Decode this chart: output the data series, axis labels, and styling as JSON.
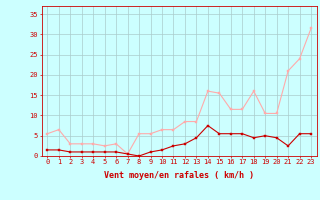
{
  "hours": [
    0,
    1,
    2,
    3,
    4,
    5,
    6,
    7,
    8,
    9,
    10,
    11,
    12,
    13,
    14,
    15,
    16,
    17,
    18,
    19,
    20,
    21,
    22,
    23
  ],
  "rafales": [
    5.5,
    6.5,
    3.0,
    3.0,
    3.0,
    2.5,
    3.0,
    0.5,
    5.5,
    5.5,
    6.5,
    6.5,
    8.5,
    8.5,
    16.0,
    15.5,
    11.5,
    11.5,
    16.0,
    10.5,
    10.5,
    21.0,
    24.0,
    31.5
  ],
  "moyen": [
    1.5,
    1.5,
    1.0,
    1.0,
    1.0,
    1.0,
    1.0,
    0.5,
    0.0,
    1.0,
    1.5,
    2.5,
    3.0,
    4.5,
    7.5,
    5.5,
    5.5,
    5.5,
    4.5,
    5.0,
    4.5,
    2.5,
    5.5,
    5.5
  ],
  "rafales_color": "#ffaaaa",
  "moyen_color": "#cc0000",
  "bg_color": "#ccffff",
  "grid_color": "#aacccc",
  "axis_color": "#cc0000",
  "xlabel": "Vent moyen/en rafales ( km/h )",
  "ylim": [
    0,
    37
  ],
  "yticks": [
    0,
    5,
    10,
    15,
    20,
    25,
    30,
    35
  ],
  "xlim": [
    -0.5,
    23.5
  ],
  "marker": "s",
  "markersize": 1.8,
  "linewidth": 0.8,
  "tick_fontsize": 5.0,
  "xlabel_fontsize": 6.0
}
